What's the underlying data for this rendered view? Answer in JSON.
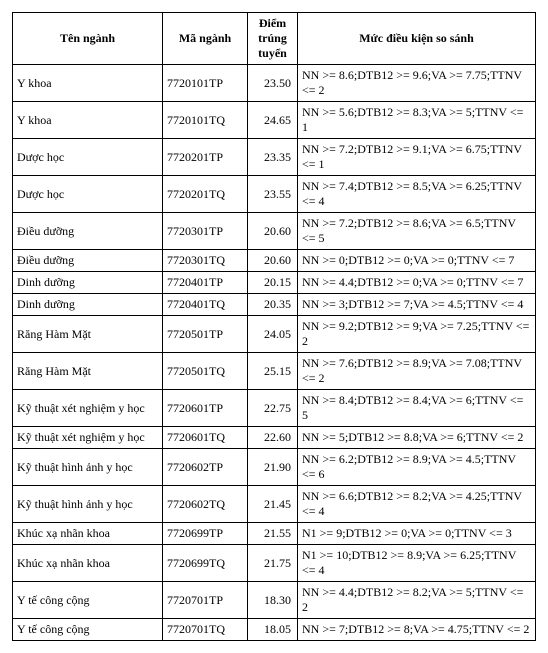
{
  "table": {
    "headers": {
      "ten_nganh": "Tên ngành",
      "ma_nganh": "Mã ngành",
      "diem_trung_tuyen": "Điểm trúng tuyển",
      "muc_dieu_kien": "Mức điều kiện so sánh"
    },
    "rows": [
      {
        "ten": "Y khoa",
        "ma": "7720101TP",
        "diem": "23.50",
        "muc": "NN >= 8.6;DTB12 >= 9.6;VA >= 7.75;TTNV <= 2"
      },
      {
        "ten": "Y khoa",
        "ma": "7720101TQ",
        "diem": "24.65",
        "muc": "NN >= 5.6;DTB12 >= 8.3;VA >= 5;TTNV <= 1"
      },
      {
        "ten": "Dược học",
        "ma": "7720201TP",
        "diem": "23.35",
        "muc": "NN >= 7.2;DTB12 >= 9.1;VA >= 6.75;TTNV <= 1"
      },
      {
        "ten": "Dược học",
        "ma": "7720201TQ",
        "diem": "23.55",
        "muc": "NN >= 7.4;DTB12 >= 8.5;VA >= 6.25;TTNV <= 4"
      },
      {
        "ten": "Điều dưỡng",
        "ma": "7720301TP",
        "diem": "20.60",
        "muc": "NN >= 7.2;DTB12 >= 8.6;VA >= 6.5;TTNV <= 5"
      },
      {
        "ten": "Điều dưỡng",
        "ma": "7720301TQ",
        "diem": "20.60",
        "muc": "NN >= 0;DTB12 >= 0;VA >= 0;TTNV <= 7"
      },
      {
        "ten": "Dinh dưỡng",
        "ma": "7720401TP",
        "diem": "20.15",
        "muc": "NN >= 4.4;DTB12 >= 0;VA >= 0;TTNV <= 7"
      },
      {
        "ten": "Dinh dưỡng",
        "ma": "7720401TQ",
        "diem": "20.35",
        "muc": "NN >= 3;DTB12 >= 7;VA >= 4.5;TTNV <= 4"
      },
      {
        "ten": "Răng Hàm Mặt",
        "ma": "7720501TP",
        "diem": "24.05",
        "muc": "NN >= 9.2;DTB12 >= 9;VA >= 7.25;TTNV <= 2"
      },
      {
        "ten": "Răng Hàm Mặt",
        "ma": "7720501TQ",
        "diem": "25.15",
        "muc": "NN >= 7.6;DTB12 >= 8.9;VA >= 7.08;TTNV <= 2"
      },
      {
        "ten": "Kỹ thuật xét nghiệm y học",
        "ma": "7720601TP",
        "diem": "22.75",
        "muc": "NN >= 8.4;DTB12 >= 8.4;VA >= 6;TTNV <= 5"
      },
      {
        "ten": "Kỹ thuật xét nghiệm y học",
        "ma": "7720601TQ",
        "diem": "22.60",
        "muc": "NN >= 5;DTB12 >= 8.8;VA >= 6;TTNV <= 2"
      },
      {
        "ten": "Kỹ thuật hình ảnh y học",
        "ma": "7720602TP",
        "diem": "21.90",
        "muc": "NN >= 6.2;DTB12 >= 8.9;VA >= 4.5;TTNV <= 6"
      },
      {
        "ten": "Kỹ thuật hình ảnh y học",
        "ma": "7720602TQ",
        "diem": "21.45",
        "muc": "NN >= 6.6;DTB12 >= 8.2;VA >= 4.25;TTNV <= 4"
      },
      {
        "ten": "Khúc xạ nhãn khoa",
        "ma": "7720699TP",
        "diem": "21.55",
        "muc": "N1 >= 9;DTB12 >= 0;VA >= 0;TTNV <= 3"
      },
      {
        "ten": "Khúc xạ nhãn khoa",
        "ma": "7720699TQ",
        "diem": "21.75",
        "muc": "N1 >= 10;DTB12 >= 8.9;VA >= 6.25;TTNV <= 4"
      },
      {
        "ten": "Y tế công cộng",
        "ma": "7720701TP",
        "diem": "18.30",
        "muc": "NN >= 4.4;DTB12 >= 8.2;VA >= 5;TTNV <= 2"
      },
      {
        "ten": "Y tế công cộng",
        "ma": "7720701TQ",
        "diem": "18.05",
        "muc": "NN >= 7;DTB12 >= 8;VA >= 4.75;TTNV <= 2"
      }
    ]
  }
}
